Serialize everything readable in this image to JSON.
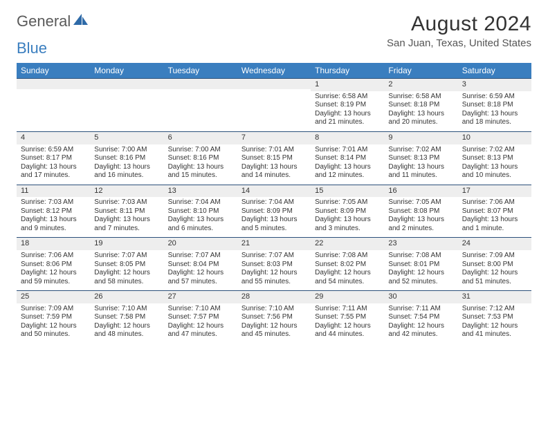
{
  "brand": {
    "part1": "General",
    "part2": "Blue"
  },
  "title": "August 2024",
  "location": "San Juan, Texas, United States",
  "colors": {
    "header_bg": "#3a7ebf",
    "header_text": "#ffffff",
    "band_bg": "#eeeeee",
    "band_border": "#2a4f7a",
    "page_bg": "#ffffff",
    "text": "#333333",
    "logo_gray": "#5a5a5a",
    "logo_blue": "#3a7ebf"
  },
  "typography": {
    "title_fontsize": 30,
    "location_fontsize": 15,
    "dow_fontsize": 12,
    "cell_fontsize": 10,
    "logo_fontsize": 22
  },
  "dow": [
    "Sunday",
    "Monday",
    "Tuesday",
    "Wednesday",
    "Thursday",
    "Friday",
    "Saturday"
  ],
  "weeks": [
    [
      {
        "n": "",
        "sr": "",
        "ss": "",
        "dl1": "",
        "dl2": ""
      },
      {
        "n": "",
        "sr": "",
        "ss": "",
        "dl1": "",
        "dl2": ""
      },
      {
        "n": "",
        "sr": "",
        "ss": "",
        "dl1": "",
        "dl2": ""
      },
      {
        "n": "",
        "sr": "",
        "ss": "",
        "dl1": "",
        "dl2": ""
      },
      {
        "n": "1",
        "sr": "Sunrise: 6:58 AM",
        "ss": "Sunset: 8:19 PM",
        "dl1": "Daylight: 13 hours",
        "dl2": "and 21 minutes."
      },
      {
        "n": "2",
        "sr": "Sunrise: 6:58 AM",
        "ss": "Sunset: 8:18 PM",
        "dl1": "Daylight: 13 hours",
        "dl2": "and 20 minutes."
      },
      {
        "n": "3",
        "sr": "Sunrise: 6:59 AM",
        "ss": "Sunset: 8:18 PM",
        "dl1": "Daylight: 13 hours",
        "dl2": "and 18 minutes."
      }
    ],
    [
      {
        "n": "4",
        "sr": "Sunrise: 6:59 AM",
        "ss": "Sunset: 8:17 PM",
        "dl1": "Daylight: 13 hours",
        "dl2": "and 17 minutes."
      },
      {
        "n": "5",
        "sr": "Sunrise: 7:00 AM",
        "ss": "Sunset: 8:16 PM",
        "dl1": "Daylight: 13 hours",
        "dl2": "and 16 minutes."
      },
      {
        "n": "6",
        "sr": "Sunrise: 7:00 AM",
        "ss": "Sunset: 8:16 PM",
        "dl1": "Daylight: 13 hours",
        "dl2": "and 15 minutes."
      },
      {
        "n": "7",
        "sr": "Sunrise: 7:01 AM",
        "ss": "Sunset: 8:15 PM",
        "dl1": "Daylight: 13 hours",
        "dl2": "and 14 minutes."
      },
      {
        "n": "8",
        "sr": "Sunrise: 7:01 AM",
        "ss": "Sunset: 8:14 PM",
        "dl1": "Daylight: 13 hours",
        "dl2": "and 12 minutes."
      },
      {
        "n": "9",
        "sr": "Sunrise: 7:02 AM",
        "ss": "Sunset: 8:13 PM",
        "dl1": "Daylight: 13 hours",
        "dl2": "and 11 minutes."
      },
      {
        "n": "10",
        "sr": "Sunrise: 7:02 AM",
        "ss": "Sunset: 8:13 PM",
        "dl1": "Daylight: 13 hours",
        "dl2": "and 10 minutes."
      }
    ],
    [
      {
        "n": "11",
        "sr": "Sunrise: 7:03 AM",
        "ss": "Sunset: 8:12 PM",
        "dl1": "Daylight: 13 hours",
        "dl2": "and 9 minutes."
      },
      {
        "n": "12",
        "sr": "Sunrise: 7:03 AM",
        "ss": "Sunset: 8:11 PM",
        "dl1": "Daylight: 13 hours",
        "dl2": "and 7 minutes."
      },
      {
        "n": "13",
        "sr": "Sunrise: 7:04 AM",
        "ss": "Sunset: 8:10 PM",
        "dl1": "Daylight: 13 hours",
        "dl2": "and 6 minutes."
      },
      {
        "n": "14",
        "sr": "Sunrise: 7:04 AM",
        "ss": "Sunset: 8:09 PM",
        "dl1": "Daylight: 13 hours",
        "dl2": "and 5 minutes."
      },
      {
        "n": "15",
        "sr": "Sunrise: 7:05 AM",
        "ss": "Sunset: 8:09 PM",
        "dl1": "Daylight: 13 hours",
        "dl2": "and 3 minutes."
      },
      {
        "n": "16",
        "sr": "Sunrise: 7:05 AM",
        "ss": "Sunset: 8:08 PM",
        "dl1": "Daylight: 13 hours",
        "dl2": "and 2 minutes."
      },
      {
        "n": "17",
        "sr": "Sunrise: 7:06 AM",
        "ss": "Sunset: 8:07 PM",
        "dl1": "Daylight: 13 hours",
        "dl2": "and 1 minute."
      }
    ],
    [
      {
        "n": "18",
        "sr": "Sunrise: 7:06 AM",
        "ss": "Sunset: 8:06 PM",
        "dl1": "Daylight: 12 hours",
        "dl2": "and 59 minutes."
      },
      {
        "n": "19",
        "sr": "Sunrise: 7:07 AM",
        "ss": "Sunset: 8:05 PM",
        "dl1": "Daylight: 12 hours",
        "dl2": "and 58 minutes."
      },
      {
        "n": "20",
        "sr": "Sunrise: 7:07 AM",
        "ss": "Sunset: 8:04 PM",
        "dl1": "Daylight: 12 hours",
        "dl2": "and 57 minutes."
      },
      {
        "n": "21",
        "sr": "Sunrise: 7:07 AM",
        "ss": "Sunset: 8:03 PM",
        "dl1": "Daylight: 12 hours",
        "dl2": "and 55 minutes."
      },
      {
        "n": "22",
        "sr": "Sunrise: 7:08 AM",
        "ss": "Sunset: 8:02 PM",
        "dl1": "Daylight: 12 hours",
        "dl2": "and 54 minutes."
      },
      {
        "n": "23",
        "sr": "Sunrise: 7:08 AM",
        "ss": "Sunset: 8:01 PM",
        "dl1": "Daylight: 12 hours",
        "dl2": "and 52 minutes."
      },
      {
        "n": "24",
        "sr": "Sunrise: 7:09 AM",
        "ss": "Sunset: 8:00 PM",
        "dl1": "Daylight: 12 hours",
        "dl2": "and 51 minutes."
      }
    ],
    [
      {
        "n": "25",
        "sr": "Sunrise: 7:09 AM",
        "ss": "Sunset: 7:59 PM",
        "dl1": "Daylight: 12 hours",
        "dl2": "and 50 minutes."
      },
      {
        "n": "26",
        "sr": "Sunrise: 7:10 AM",
        "ss": "Sunset: 7:58 PM",
        "dl1": "Daylight: 12 hours",
        "dl2": "and 48 minutes."
      },
      {
        "n": "27",
        "sr": "Sunrise: 7:10 AM",
        "ss": "Sunset: 7:57 PM",
        "dl1": "Daylight: 12 hours",
        "dl2": "and 47 minutes."
      },
      {
        "n": "28",
        "sr": "Sunrise: 7:10 AM",
        "ss": "Sunset: 7:56 PM",
        "dl1": "Daylight: 12 hours",
        "dl2": "and 45 minutes."
      },
      {
        "n": "29",
        "sr": "Sunrise: 7:11 AM",
        "ss": "Sunset: 7:55 PM",
        "dl1": "Daylight: 12 hours",
        "dl2": "and 44 minutes."
      },
      {
        "n": "30",
        "sr": "Sunrise: 7:11 AM",
        "ss": "Sunset: 7:54 PM",
        "dl1": "Daylight: 12 hours",
        "dl2": "and 42 minutes."
      },
      {
        "n": "31",
        "sr": "Sunrise: 7:12 AM",
        "ss": "Sunset: 7:53 PM",
        "dl1": "Daylight: 12 hours",
        "dl2": "and 41 minutes."
      }
    ]
  ]
}
